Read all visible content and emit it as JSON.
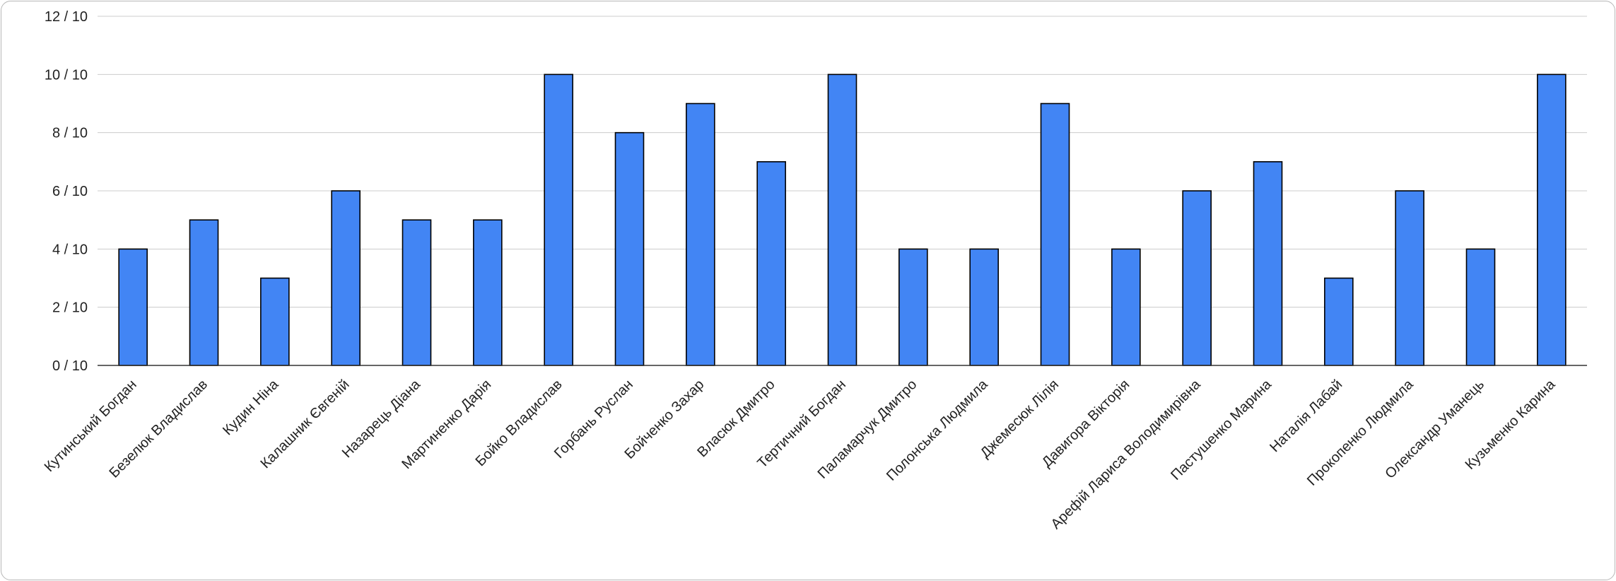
{
  "chart_data": {
    "type": "bar",
    "title": "",
    "xlabel": "",
    "ylabel": "",
    "ylim": [
      0,
      12
    ],
    "ytick_step": 2,
    "ytick_suffix": " / 10",
    "grid": true,
    "legend": "none",
    "bar_color": "#4285f4",
    "bar_edge_color": "#000000",
    "categories": [
      "Кутинський Богдан",
      "Безелюк Владислав",
      "Кудин Ніна",
      "Калашник Євгеній",
      "Назарець Діана",
      "Мартиненко Дарія",
      "Бойко Владислав",
      "Горбань Руслан",
      "Бойченко Захар",
      "Власюк Дмитро",
      "Тертичний Богдан",
      "Паламарчук Дмитро",
      "Полонська Людмила",
      "Джемесюк Лілія",
      "Давигора Вікторія",
      "Арефій Лариса Володимирівна",
      "Пастушенко Марина",
      "Наталія Лабай",
      "Прокопенко Людмила",
      "Олександр Уманець",
      "Кузьменко Карина"
    ],
    "values": [
      4,
      5,
      3,
      6,
      5,
      5,
      10,
      8,
      9,
      7,
      10,
      4,
      4,
      9,
      4,
      6,
      7,
      3,
      6,
      4,
      10
    ]
  }
}
